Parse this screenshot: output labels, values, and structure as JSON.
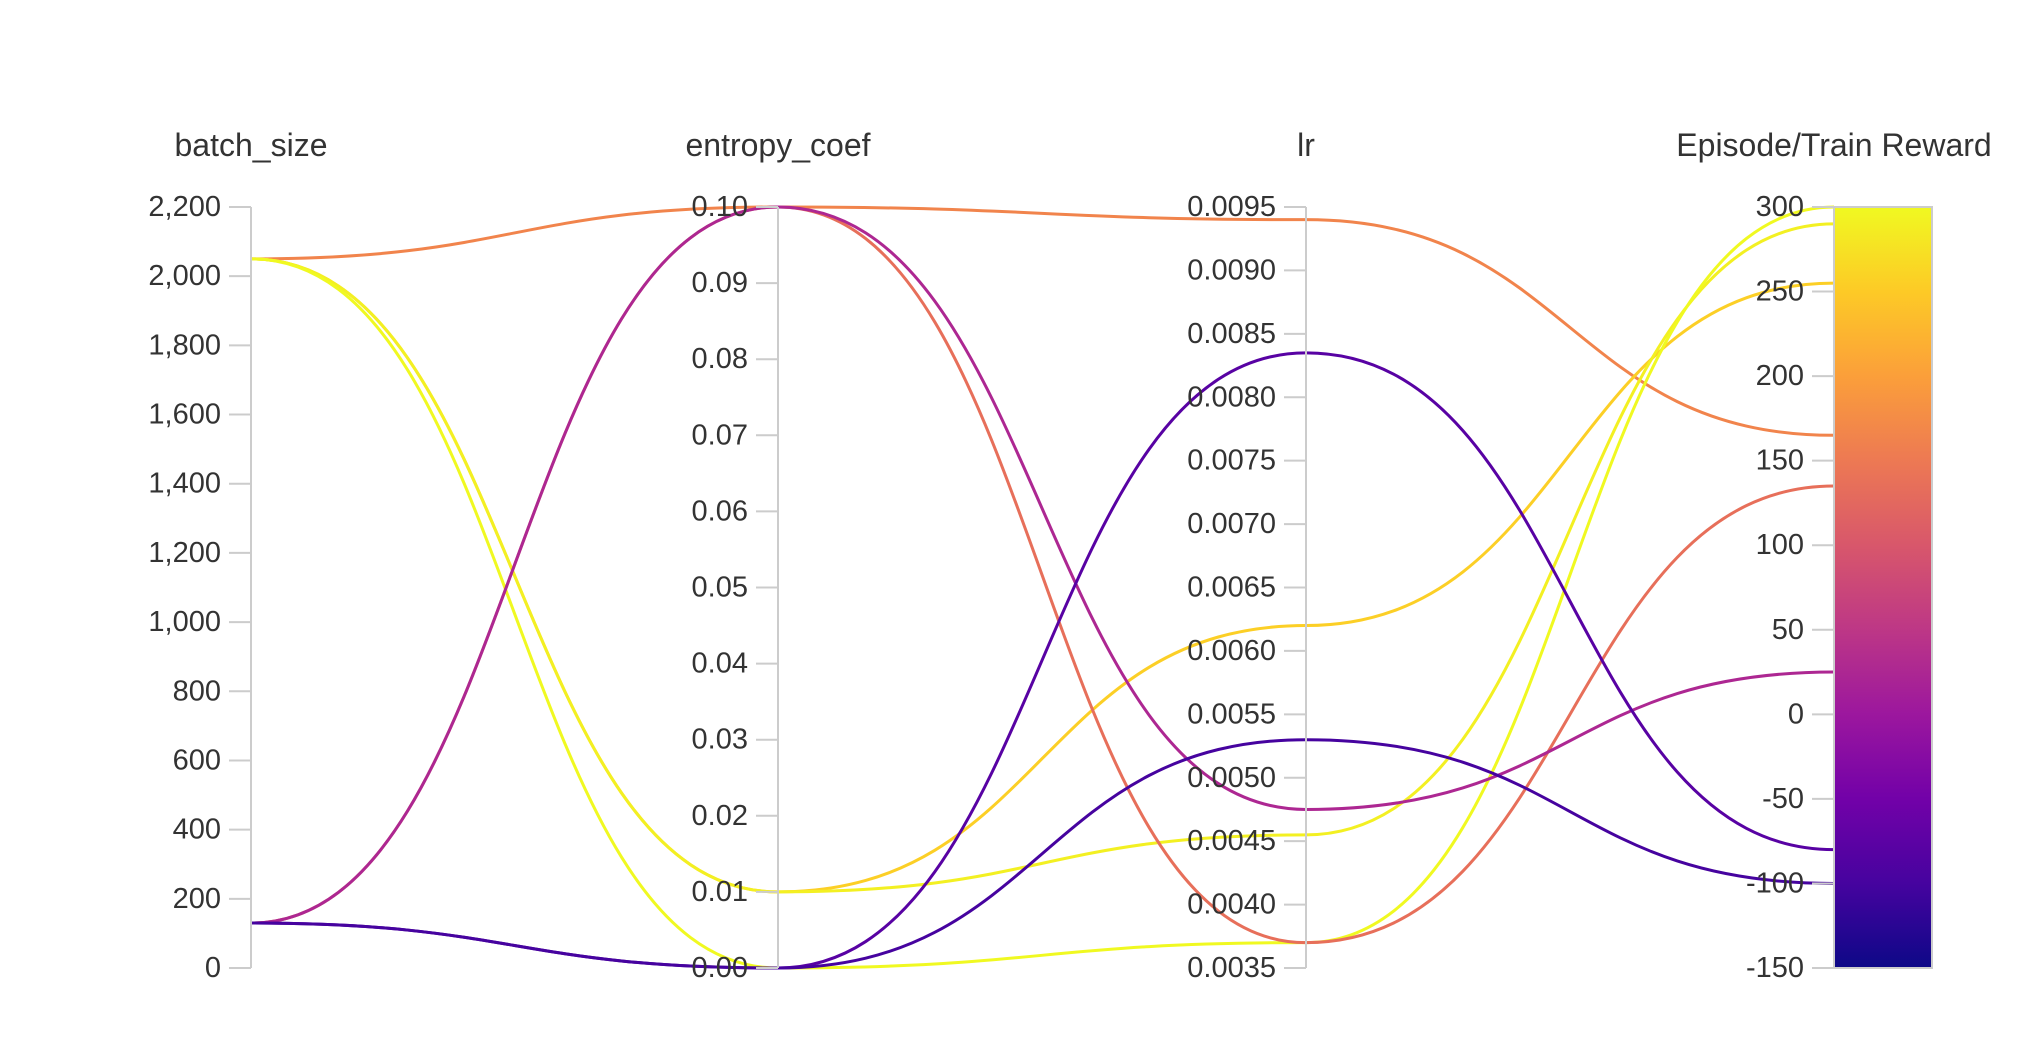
{
  "chart_data": {
    "type": "parallel_coordinates",
    "dimensions": [
      {
        "name": "batch_size",
        "range": [
          0,
          2200
        ],
        "ticks": [
          {
            "value": 0,
            "label": "0"
          },
          {
            "value": 200,
            "label": "200"
          },
          {
            "value": 400,
            "label": "400"
          },
          {
            "value": 600,
            "label": "600"
          },
          {
            "value": 800,
            "label": "800"
          },
          {
            "value": 1000,
            "label": "1,000"
          },
          {
            "value": 1200,
            "label": "1,200"
          },
          {
            "value": 1400,
            "label": "1,400"
          },
          {
            "value": 1600,
            "label": "1,600"
          },
          {
            "value": 1800,
            "label": "1,800"
          },
          {
            "value": 2000,
            "label": "2,000"
          },
          {
            "value": 2200,
            "label": "2,200"
          }
        ]
      },
      {
        "name": "entropy_coef",
        "range": [
          0,
          0.1
        ],
        "ticks": [
          {
            "value": 0,
            "label": "0.00"
          },
          {
            "value": 0.01,
            "label": "0.01"
          },
          {
            "value": 0.02,
            "label": "0.02"
          },
          {
            "value": 0.03,
            "label": "0.03"
          },
          {
            "value": 0.04,
            "label": "0.04"
          },
          {
            "value": 0.05,
            "label": "0.05"
          },
          {
            "value": 0.06,
            "label": "0.06"
          },
          {
            "value": 0.07,
            "label": "0.07"
          },
          {
            "value": 0.08,
            "label": "0.08"
          },
          {
            "value": 0.09,
            "label": "0.09"
          },
          {
            "value": 0.1,
            "label": "0.10"
          }
        ]
      },
      {
        "name": "lr",
        "range": [
          0.0035,
          0.0095
        ],
        "ticks": [
          {
            "value": 0.0035,
            "label": "0.0035"
          },
          {
            "value": 0.004,
            "label": "0.0040"
          },
          {
            "value": 0.0045,
            "label": "0.0045"
          },
          {
            "value": 0.005,
            "label": "0.0050"
          },
          {
            "value": 0.0055,
            "label": "0.0055"
          },
          {
            "value": 0.006,
            "label": "0.0060"
          },
          {
            "value": 0.0065,
            "label": "0.0065"
          },
          {
            "value": 0.007,
            "label": "0.0070"
          },
          {
            "value": 0.0075,
            "label": "0.0075"
          },
          {
            "value": 0.008,
            "label": "0.0080"
          },
          {
            "value": 0.0085,
            "label": "0.0085"
          },
          {
            "value": 0.009,
            "label": "0.0090"
          },
          {
            "value": 0.0095,
            "label": "0.0095"
          }
        ]
      },
      {
        "name": "Episode/Train Reward",
        "range": [
          -150,
          300
        ],
        "ticks": [
          {
            "value": -150,
            "label": "-150"
          },
          {
            "value": -100,
            "label": "-100"
          },
          {
            "value": -50,
            "label": "-50"
          },
          {
            "value": 0,
            "label": "0"
          },
          {
            "value": 50,
            "label": "50"
          },
          {
            "value": 100,
            "label": "100"
          },
          {
            "value": 150,
            "label": "150"
          },
          {
            "value": 200,
            "label": "200"
          },
          {
            "value": 250,
            "label": "250"
          },
          {
            "value": 300,
            "label": "300"
          }
        ]
      }
    ],
    "colorscale": {
      "name": "plasma",
      "dimension": "Episode/Train Reward",
      "range": [
        -150,
        300
      ],
      "stops": [
        "#0d0887",
        "#46039f",
        "#7201a8",
        "#9c179e",
        "#bd3786",
        "#d8576b",
        "#ed7953",
        "#fb9f3a",
        "#fdca26",
        "#f0f921"
      ]
    },
    "series": [
      {
        "values": [
          2050,
          0.1,
          0.0094,
          165
        ]
      },
      {
        "values": [
          2050,
          0.01,
          0.0062,
          255
        ]
      },
      {
        "values": [
          2050,
          0.01,
          0.00455,
          290
        ]
      },
      {
        "values": [
          2050,
          0.0,
          0.0037,
          300
        ]
      },
      {
        "values": [
          130,
          0.1,
          0.0037,
          135
        ]
      },
      {
        "values": [
          130,
          0.1,
          0.00475,
          25
        ]
      },
      {
        "values": [
          130,
          0.0,
          0.00835,
          -80
        ]
      },
      {
        "values": [
          130,
          0.0,
          0.0053,
          -100
        ]
      }
    ]
  }
}
